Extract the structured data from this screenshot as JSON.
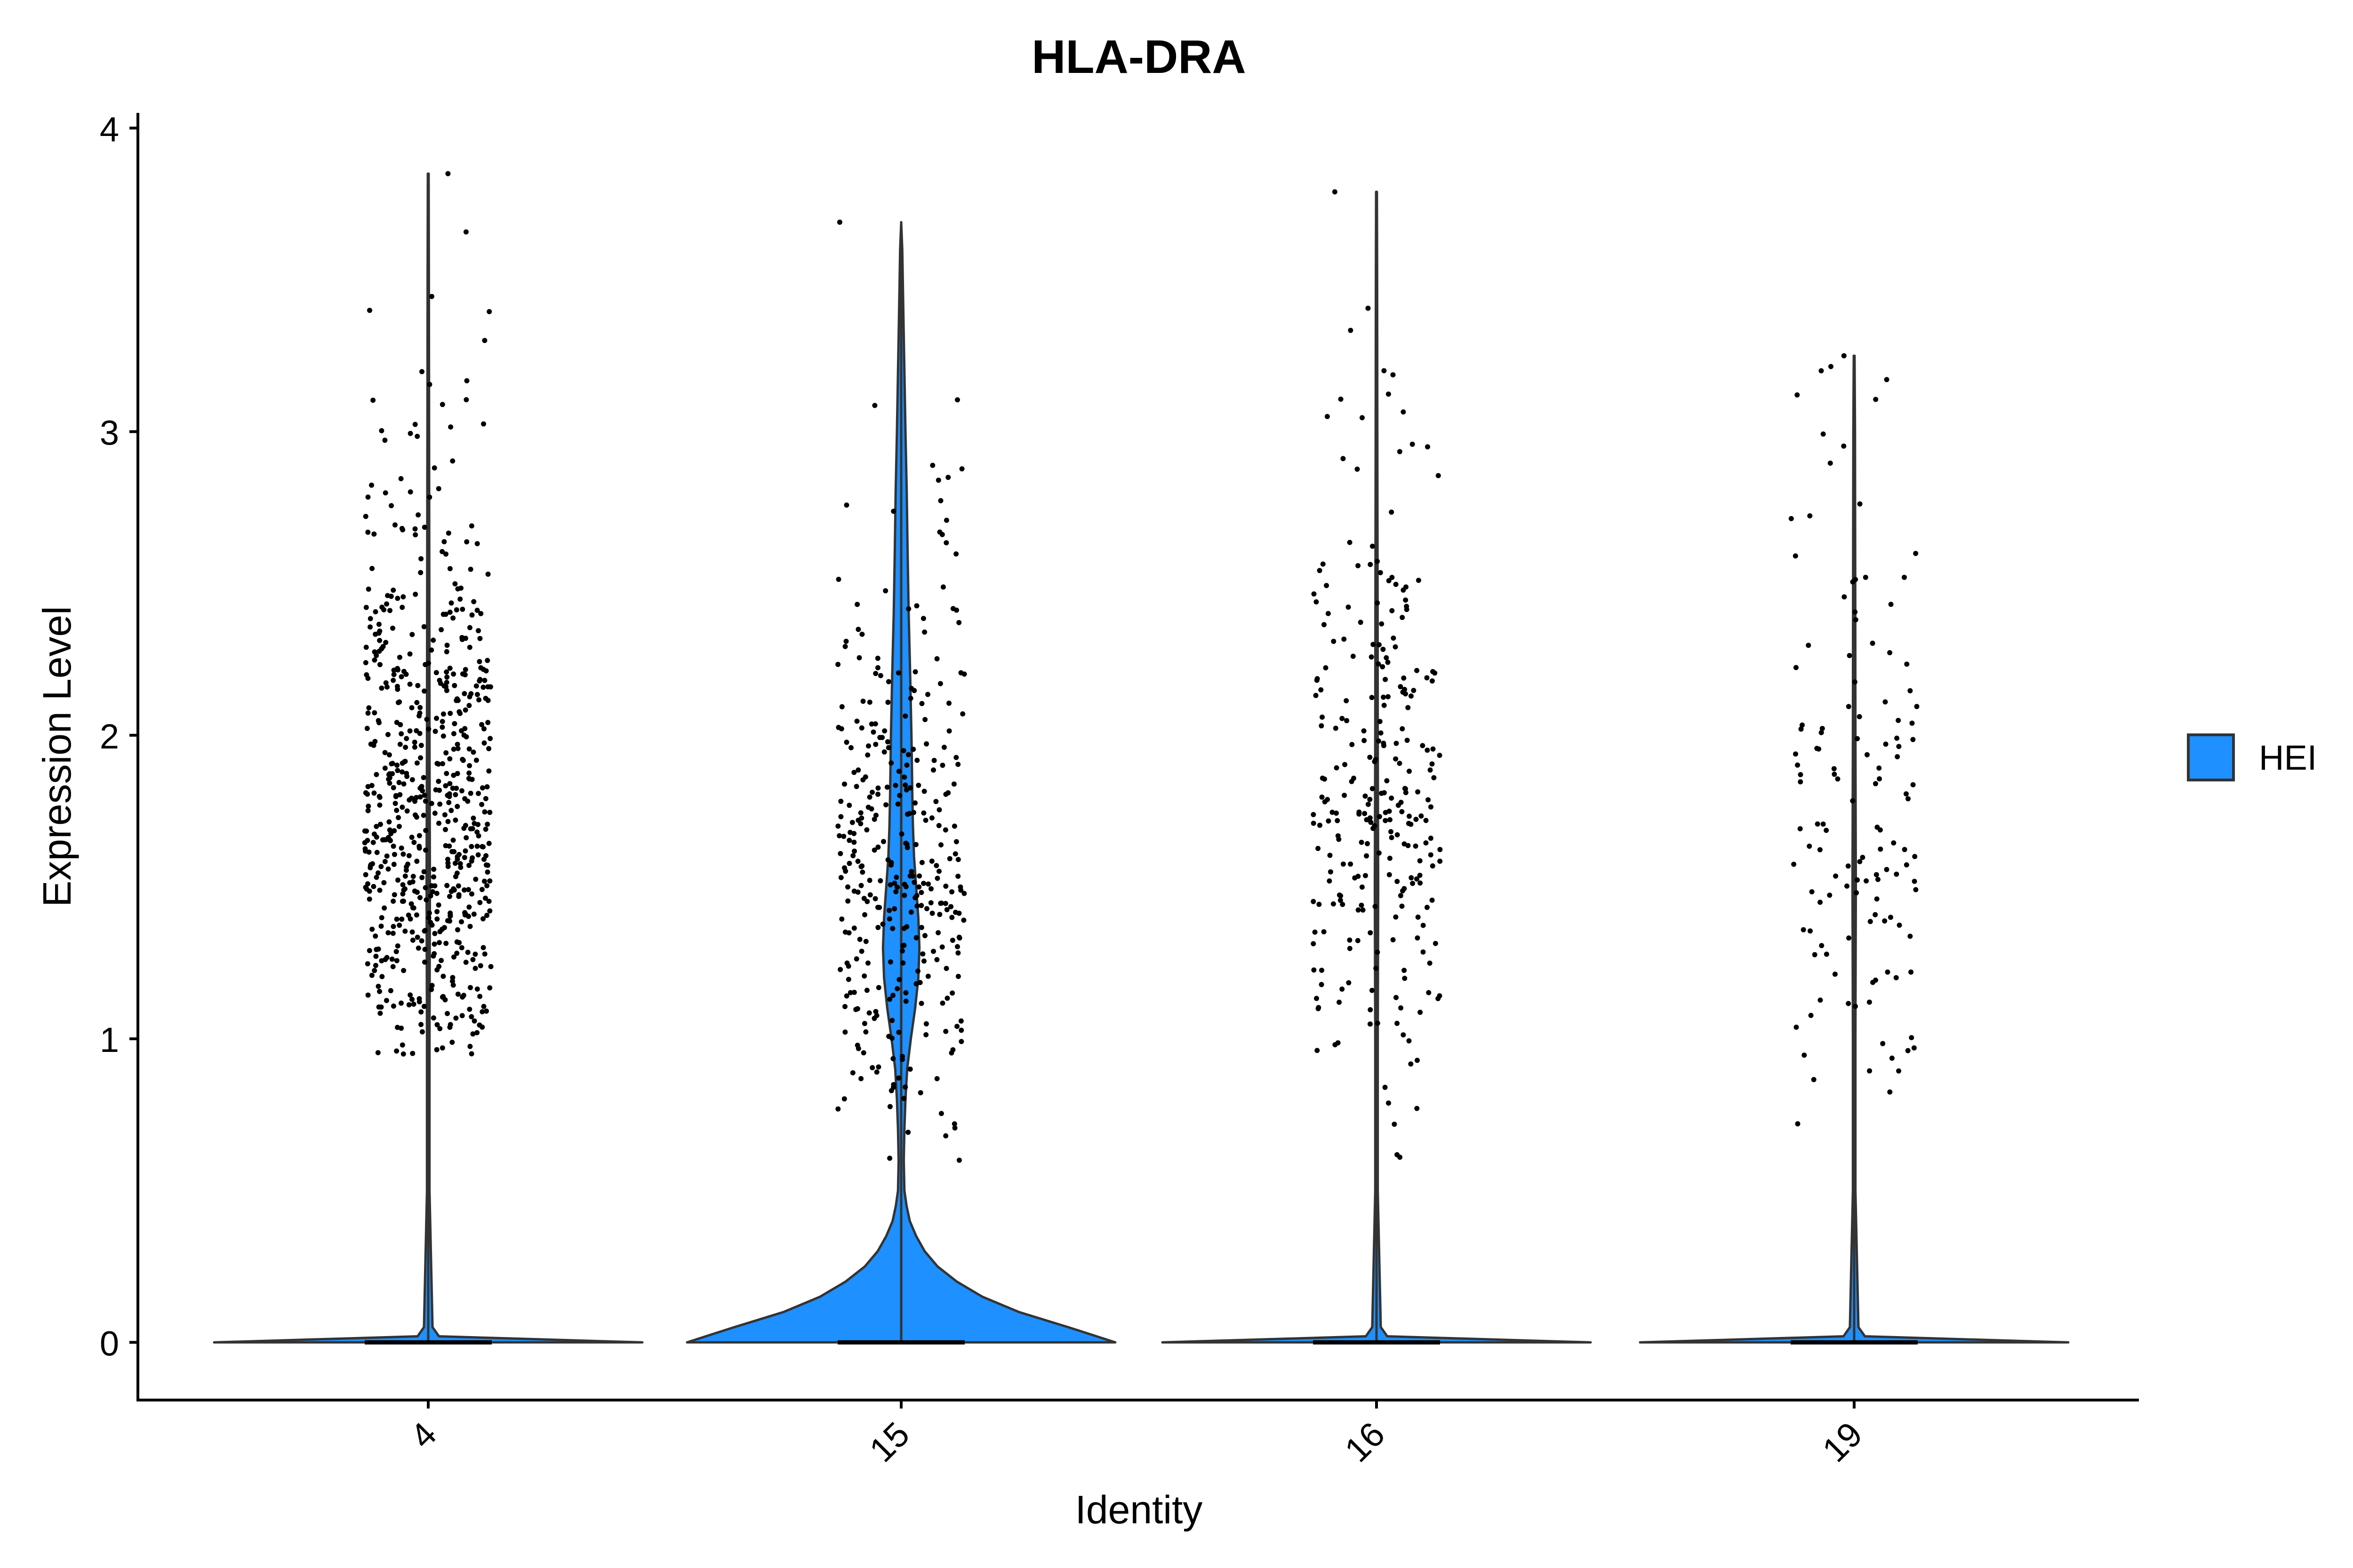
{
  "chart_data": {
    "type": "violin",
    "title": "HLA-DRA",
    "xlabel": "Identity",
    "ylabel": "Expression Level",
    "categories": [
      "4",
      "15",
      "16",
      "19"
    ],
    "ylim": [
      -0.19,
      4.05
    ],
    "yticks": [
      0,
      1,
      2,
      3,
      4
    ],
    "ytick_labels": [
      "0",
      "1",
      "2",
      "3",
      "4"
    ],
    "x_tick_rotation": -45,
    "legend": {
      "position": "right",
      "entries": [
        {
          "label": "HEI",
          "color": "#1E90FF"
        }
      ]
    },
    "fill_color": "#1E90FF",
    "point_color": "#000000",
    "groups": [
      {
        "identity": "4",
        "max": 3.85,
        "expressed_cells": 650,
        "expressed_range": [
          0.95,
          3.85
        ],
        "expressed_mode": 1.45,
        "violin_profile": [
          [
            0.0,
            1.0
          ],
          [
            0.02,
            0.05
          ],
          [
            0.05,
            0.02
          ],
          [
            0.5,
            0.006
          ],
          [
            1.0,
            0.006
          ],
          [
            1.5,
            0.008
          ],
          [
            2.0,
            0.006
          ],
          [
            2.5,
            0.005
          ],
          [
            3.0,
            0.004
          ],
          [
            3.5,
            0.003
          ],
          [
            3.85,
            0.002
          ]
        ]
      },
      {
        "identity": "15",
        "max": 3.69,
        "expressed_cells": 350,
        "expressed_range": [
          0.6,
          3.69
        ],
        "expressed_mode": 1.3,
        "violin_profile": [
          [
            0.0,
            1.0
          ],
          [
            0.05,
            0.78
          ],
          [
            0.1,
            0.55
          ],
          [
            0.15,
            0.38
          ],
          [
            0.2,
            0.26
          ],
          [
            0.25,
            0.17
          ],
          [
            0.3,
            0.11
          ],
          [
            0.35,
            0.07
          ],
          [
            0.4,
            0.04
          ],
          [
            0.45,
            0.025
          ],
          [
            0.5,
            0.015
          ],
          [
            0.6,
            0.012
          ],
          [
            0.7,
            0.015
          ],
          [
            0.8,
            0.02
          ],
          [
            0.9,
            0.028
          ],
          [
            1.0,
            0.045
          ],
          [
            1.1,
            0.065
          ],
          [
            1.2,
            0.08
          ],
          [
            1.3,
            0.085
          ],
          [
            1.4,
            0.08
          ],
          [
            1.5,
            0.07
          ],
          [
            1.6,
            0.06
          ],
          [
            1.7,
            0.055
          ],
          [
            1.8,
            0.052
          ],
          [
            1.9,
            0.05
          ],
          [
            2.0,
            0.048
          ],
          [
            2.2,
            0.042
          ],
          [
            2.4,
            0.035
          ],
          [
            2.6,
            0.03
          ],
          [
            2.8,
            0.026
          ],
          [
            3.0,
            0.02
          ],
          [
            3.2,
            0.015
          ],
          [
            3.4,
            0.01
          ],
          [
            3.6,
            0.005
          ],
          [
            3.69,
            0.0
          ]
        ]
      },
      {
        "identity": "16",
        "max": 3.79,
        "expressed_cells": 270,
        "expressed_range": [
          0.61,
          3.79
        ],
        "expressed_mode": 1.5,
        "violin_profile": [
          [
            0.0,
            1.0
          ],
          [
            0.02,
            0.05
          ],
          [
            0.05,
            0.02
          ],
          [
            0.5,
            0.006
          ],
          [
            1.0,
            0.006
          ],
          [
            1.5,
            0.008
          ],
          [
            2.0,
            0.006
          ],
          [
            2.5,
            0.005
          ],
          [
            3.0,
            0.004
          ],
          [
            3.5,
            0.003
          ],
          [
            3.79,
            0.002
          ]
        ]
      },
      {
        "identity": "19",
        "max": 3.25,
        "expressed_cells": 130,
        "expressed_range": [
          0.72,
          3.25
        ],
        "expressed_mode": 1.5,
        "violin_profile": [
          [
            0.0,
            1.0
          ],
          [
            0.02,
            0.05
          ],
          [
            0.05,
            0.02
          ],
          [
            0.5,
            0.006
          ],
          [
            1.0,
            0.006
          ],
          [
            1.5,
            0.008
          ],
          [
            2.0,
            0.006
          ],
          [
            2.5,
            0.005
          ],
          [
            3.0,
            0.004
          ],
          [
            3.25,
            0.002
          ]
        ]
      }
    ]
  }
}
